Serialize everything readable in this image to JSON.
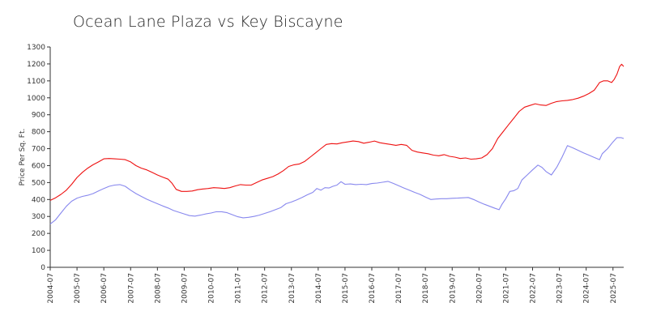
{
  "chart_data": {
    "type": "line",
    "title": "Ocean Lane Plaza vs Key Biscayne",
    "ylabel": "Price Per Sq. Ft.",
    "xlabel": "",
    "ylim": [
      0,
      1300
    ],
    "yticks": [
      0,
      100,
      200,
      300,
      400,
      500,
      600,
      700,
      800,
      900,
      1000,
      1100,
      1200,
      1300
    ],
    "xticks": [
      "2004-07",
      "2005-07",
      "2006-07",
      "2007-07",
      "2008-07",
      "2009-07",
      "2010-07",
      "2011-07",
      "2012-07",
      "2013-07",
      "2014-07",
      "2015-07",
      "2016-07",
      "2017-07",
      "2018-07",
      "2019-07",
      "2020-07",
      "2021-07",
      "2022-07",
      "2023-07",
      "2024-07",
      "2025-07"
    ],
    "xrange": [
      2004.5,
      2025.9
    ],
    "grid": false,
    "series": [
      {
        "color": "#ee1111",
        "points": [
          [
            2004.5,
            395
          ],
          [
            2004.7,
            410
          ],
          [
            2004.9,
            430
          ],
          [
            2005.1,
            455
          ],
          [
            2005.3,
            490
          ],
          [
            2005.5,
            530
          ],
          [
            2005.7,
            560
          ],
          [
            2005.9,
            585
          ],
          [
            2006.1,
            605
          ],
          [
            2006.3,
            622
          ],
          [
            2006.5,
            640
          ],
          [
            2006.7,
            642
          ],
          [
            2006.9,
            640
          ],
          [
            2007.1,
            638
          ],
          [
            2007.3,
            635
          ],
          [
            2007.5,
            622
          ],
          [
            2007.7,
            600
          ],
          [
            2007.9,
            585
          ],
          [
            2008.1,
            575
          ],
          [
            2008.3,
            560
          ],
          [
            2008.5,
            545
          ],
          [
            2008.7,
            532
          ],
          [
            2008.9,
            520
          ],
          [
            2009.05,
            495
          ],
          [
            2009.2,
            460
          ],
          [
            2009.4,
            448
          ],
          [
            2009.6,
            448
          ],
          [
            2009.8,
            450
          ],
          [
            2010.0,
            458
          ],
          [
            2010.2,
            462
          ],
          [
            2010.4,
            465
          ],
          [
            2010.6,
            470
          ],
          [
            2010.8,
            468
          ],
          [
            2011.0,
            465
          ],
          [
            2011.2,
            470
          ],
          [
            2011.4,
            480
          ],
          [
            2011.6,
            488
          ],
          [
            2011.8,
            485
          ],
          [
            2012.0,
            485
          ],
          [
            2012.2,
            500
          ],
          [
            2012.4,
            515
          ],
          [
            2012.6,
            525
          ],
          [
            2012.8,
            535
          ],
          [
            2013.0,
            550
          ],
          [
            2013.2,
            570
          ],
          [
            2013.4,
            595
          ],
          [
            2013.6,
            605
          ],
          [
            2013.8,
            610
          ],
          [
            2014.0,
            625
          ],
          [
            2014.2,
            650
          ],
          [
            2014.4,
            675
          ],
          [
            2014.6,
            700
          ],
          [
            2014.8,
            725
          ],
          [
            2015.0,
            730
          ],
          [
            2015.2,
            728
          ],
          [
            2015.4,
            735
          ],
          [
            2015.6,
            740
          ],
          [
            2015.8,
            745
          ],
          [
            2016.0,
            742
          ],
          [
            2016.2,
            732
          ],
          [
            2016.4,
            738
          ],
          [
            2016.6,
            745
          ],
          [
            2016.8,
            735
          ],
          [
            2017.0,
            730
          ],
          [
            2017.2,
            725
          ],
          [
            2017.4,
            720
          ],
          [
            2017.6,
            725
          ],
          [
            2017.8,
            720
          ],
          [
            2018.0,
            690
          ],
          [
            2018.2,
            680
          ],
          [
            2018.4,
            675
          ],
          [
            2018.6,
            670
          ],
          [
            2018.8,
            662
          ],
          [
            2019.0,
            658
          ],
          [
            2019.2,
            665
          ],
          [
            2019.4,
            655
          ],
          [
            2019.6,
            650
          ],
          [
            2019.8,
            642
          ],
          [
            2020.0,
            645
          ],
          [
            2020.2,
            638
          ],
          [
            2020.4,
            640
          ],
          [
            2020.6,
            645
          ],
          [
            2020.8,
            665
          ],
          [
            2021.0,
            700
          ],
          [
            2021.2,
            760
          ],
          [
            2021.4,
            800
          ],
          [
            2021.6,
            840
          ],
          [
            2021.8,
            880
          ],
          [
            2022.0,
            920
          ],
          [
            2022.2,
            945
          ],
          [
            2022.4,
            955
          ],
          [
            2022.6,
            965
          ],
          [
            2022.8,
            958
          ],
          [
            2023.0,
            955
          ],
          [
            2023.2,
            968
          ],
          [
            2023.4,
            978
          ],
          [
            2023.6,
            982
          ],
          [
            2023.8,
            985
          ],
          [
            2024.0,
            990
          ],
          [
            2024.2,
            998
          ],
          [
            2024.4,
            1010
          ],
          [
            2024.6,
            1025
          ],
          [
            2024.8,
            1045
          ],
          [
            2025.0,
            1090
          ],
          [
            2025.15,
            1100
          ],
          [
            2025.3,
            1100
          ],
          [
            2025.45,
            1090
          ],
          [
            2025.55,
            1110
          ],
          [
            2025.65,
            1140
          ],
          [
            2025.75,
            1185
          ],
          [
            2025.82,
            1198
          ],
          [
            2025.9,
            1185
          ]
        ]
      },
      {
        "color": "#8888ee",
        "points": [
          [
            2004.5,
            255
          ],
          [
            2004.7,
            280
          ],
          [
            2004.9,
            320
          ],
          [
            2005.1,
            360
          ],
          [
            2005.3,
            390
          ],
          [
            2005.5,
            408
          ],
          [
            2005.7,
            418
          ],
          [
            2005.9,
            425
          ],
          [
            2006.1,
            435
          ],
          [
            2006.3,
            450
          ],
          [
            2006.5,
            465
          ],
          [
            2006.7,
            478
          ],
          [
            2006.9,
            485
          ],
          [
            2007.1,
            488
          ],
          [
            2007.3,
            478
          ],
          [
            2007.5,
            455
          ],
          [
            2007.7,
            435
          ],
          [
            2007.9,
            418
          ],
          [
            2008.1,
            402
          ],
          [
            2008.3,
            388
          ],
          [
            2008.5,
            375
          ],
          [
            2008.7,
            362
          ],
          [
            2008.9,
            350
          ],
          [
            2009.1,
            335
          ],
          [
            2009.3,
            325
          ],
          [
            2009.5,
            315
          ],
          [
            2009.7,
            305
          ],
          [
            2009.9,
            302
          ],
          [
            2010.1,
            308
          ],
          [
            2010.3,
            315
          ],
          [
            2010.5,
            320
          ],
          [
            2010.7,
            328
          ],
          [
            2010.9,
            328
          ],
          [
            2011.1,
            322
          ],
          [
            2011.3,
            310
          ],
          [
            2011.5,
            298
          ],
          [
            2011.7,
            292
          ],
          [
            2011.9,
            295
          ],
          [
            2012.1,
            300
          ],
          [
            2012.3,
            308
          ],
          [
            2012.5,
            318
          ],
          [
            2012.7,
            328
          ],
          [
            2012.9,
            340
          ],
          [
            2013.1,
            352
          ],
          [
            2013.3,
            375
          ],
          [
            2013.5,
            385
          ],
          [
            2013.7,
            398
          ],
          [
            2013.9,
            412
          ],
          [
            2014.1,
            428
          ],
          [
            2014.3,
            442
          ],
          [
            2014.45,
            465
          ],
          [
            2014.6,
            455
          ],
          [
            2014.75,
            470
          ],
          [
            2014.9,
            468
          ],
          [
            2015.05,
            478
          ],
          [
            2015.2,
            485
          ],
          [
            2015.35,
            505
          ],
          [
            2015.5,
            490
          ],
          [
            2015.7,
            492
          ],
          [
            2015.9,
            488
          ],
          [
            2016.1,
            490
          ],
          [
            2016.3,
            488
          ],
          [
            2016.5,
            494
          ],
          [
            2016.7,
            497
          ],
          [
            2016.9,
            502
          ],
          [
            2017.1,
            507
          ],
          [
            2017.3,
            495
          ],
          [
            2017.5,
            482
          ],
          [
            2017.7,
            468
          ],
          [
            2017.9,
            455
          ],
          [
            2018.1,
            442
          ],
          [
            2018.3,
            430
          ],
          [
            2018.5,
            415
          ],
          [
            2018.7,
            400
          ],
          [
            2018.9,
            403
          ],
          [
            2019.1,
            405
          ],
          [
            2019.3,
            405
          ],
          [
            2019.5,
            407
          ],
          [
            2019.7,
            408
          ],
          [
            2019.9,
            410
          ],
          [
            2020.1,
            412
          ],
          [
            2020.3,
            400
          ],
          [
            2020.5,
            385
          ],
          [
            2020.7,
            372
          ],
          [
            2020.9,
            360
          ],
          [
            2021.1,
            348
          ],
          [
            2021.25,
            340
          ],
          [
            2021.35,
            370
          ],
          [
            2021.5,
            405
          ],
          [
            2021.65,
            448
          ],
          [
            2021.8,
            452
          ],
          [
            2021.95,
            465
          ],
          [
            2022.1,
            515
          ],
          [
            2022.3,
            545
          ],
          [
            2022.5,
            575
          ],
          [
            2022.7,
            603
          ],
          [
            2022.85,
            590
          ],
          [
            2023.0,
            565
          ],
          [
            2023.2,
            545
          ],
          [
            2023.4,
            590
          ],
          [
            2023.6,
            650
          ],
          [
            2023.8,
            718
          ],
          [
            2024.0,
            705
          ],
          [
            2024.2,
            690
          ],
          [
            2024.4,
            675
          ],
          [
            2024.6,
            662
          ],
          [
            2024.8,
            648
          ],
          [
            2025.0,
            635
          ],
          [
            2025.1,
            670
          ],
          [
            2025.3,
            700
          ],
          [
            2025.5,
            740
          ],
          [
            2025.65,
            765
          ],
          [
            2025.8,
            765
          ],
          [
            2025.9,
            760
          ]
        ]
      }
    ]
  }
}
